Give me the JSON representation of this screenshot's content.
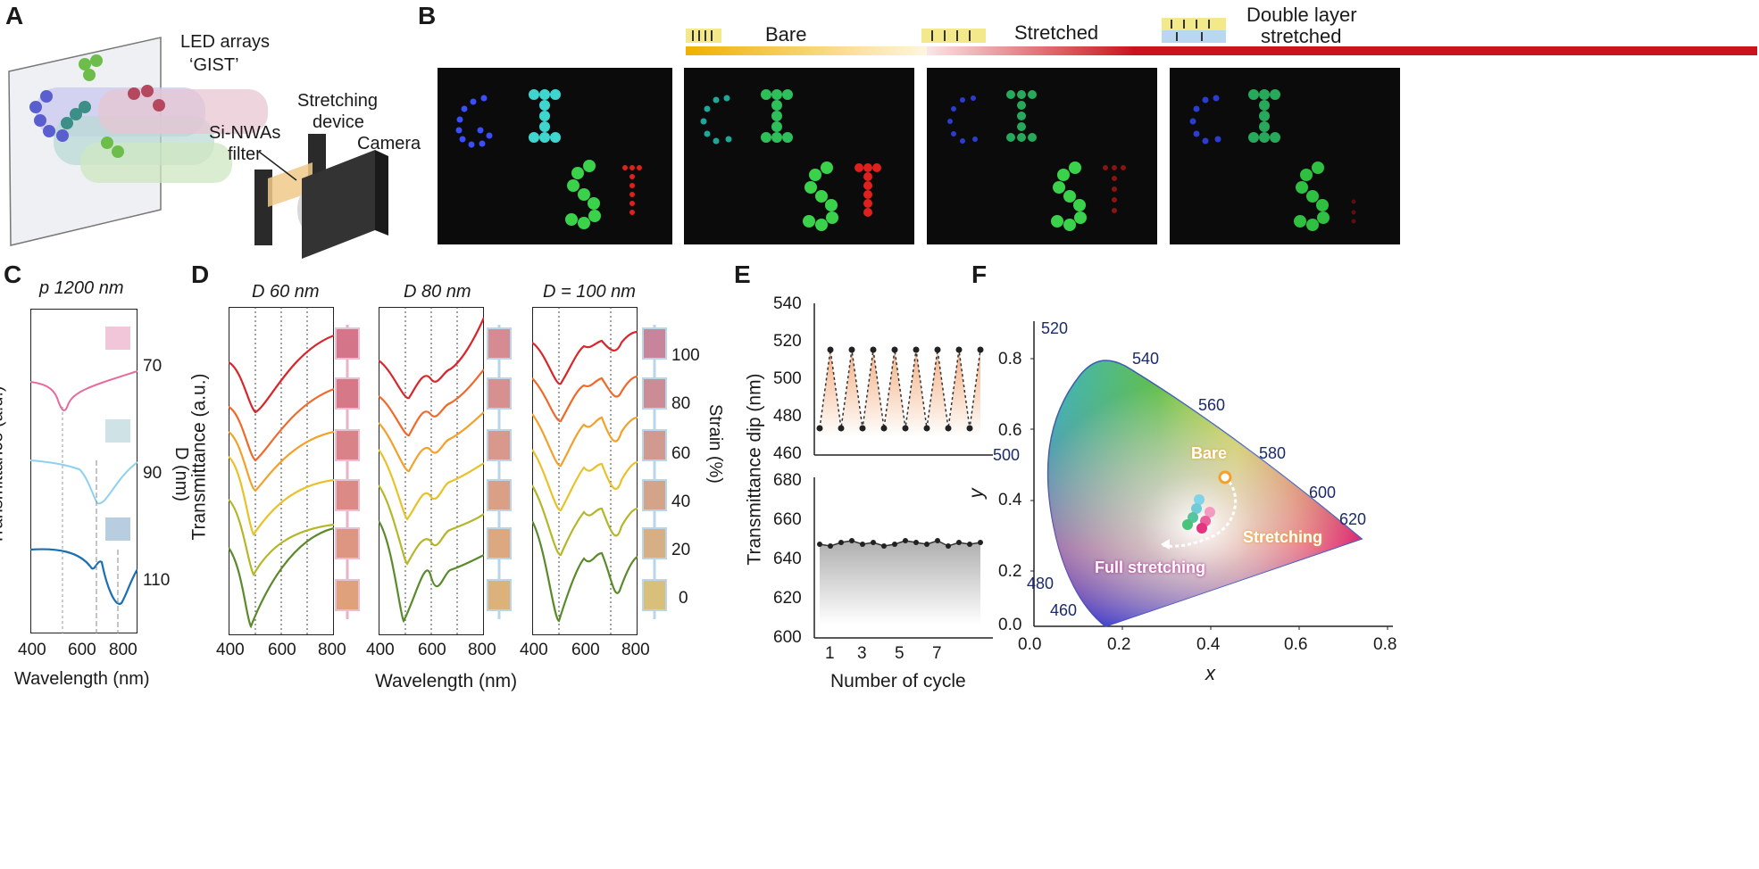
{
  "panels": {
    "a": "A",
    "b": "B",
    "c": "C",
    "d": "D",
    "e": "E",
    "f": "F"
  },
  "panelA": {
    "led_label_1": "LED arrays",
    "led_label_2": "‘GIST’",
    "stretch_1": "Stretching",
    "stretch_2": "device",
    "filter_1": "Si-NWAs",
    "filter_2": "filter",
    "camera": "Camera"
  },
  "panelB": {
    "bare": "Bare",
    "stretched": "Stretched",
    "double_1": "Double layer",
    "double_2": "stretched",
    "letters": [
      "G",
      "I",
      "S",
      "T"
    ],
    "colors": {
      "blue": "#3a4dff",
      "cyan": "#3fd6d0",
      "green": "#39d24a",
      "red": "#e0201c",
      "bar_start": "#f2b200",
      "bar_end": "#c9141e"
    }
  },
  "panelC": {
    "title": "p 1200 nm",
    "ylabel": "Transmittance (a.u.)",
    "xlabel": "Wavelength (nm)",
    "right_label": "D (nm)",
    "xticks": [
      "400",
      "600",
      "800"
    ],
    "right_ticks": [
      "70",
      "90",
      "110"
    ],
    "colors": [
      "#e66b9c",
      "#8fd0ee",
      "#1a6fb2"
    ]
  },
  "panelD": {
    "titles": [
      "D 60 nm",
      "D 80 nm",
      "D = 100 nm"
    ],
    "ylabel": "Transmittance (a.u.)",
    "xlabel": "Wavelength (nm)",
    "right_label": "Strain (%)",
    "xticks": [
      "400",
      "600",
      "800"
    ],
    "strain_ticks": [
      "100",
      "80",
      "60",
      "40",
      "20",
      "0"
    ],
    "curve_colors": [
      "#d9262a",
      "#ef6a2a",
      "#f3a12a",
      "#e9c22a",
      "#b5b62a",
      "#5a8a2a"
    ]
  },
  "panelE": {
    "ylabel": "Transmittance dip (nm)",
    "xlabel": "Number of cycle",
    "top_ticks": [
      "540",
      "520",
      "500",
      "480",
      "460"
    ],
    "bottom_ticks": [
      "680",
      "660",
      "640",
      "620",
      "600"
    ],
    "xticks": [
      "1",
      "3",
      "5",
      "7"
    ]
  },
  "panelF": {
    "xlabel": "x",
    "ylabel": "y",
    "xticks": [
      "0.0",
      "0.2",
      "0.4",
      "0.6",
      "0.8"
    ],
    "yticks": [
      "0.8",
      "0.6",
      "0.4",
      "0.2",
      "0.0"
    ],
    "wavelengths": [
      "520",
      "540",
      "560",
      "580",
      "600",
      "620",
      "500",
      "480",
      "460"
    ],
    "bare": "Bare",
    "stretching": "Stretching",
    "full": "Full stretching"
  }
}
